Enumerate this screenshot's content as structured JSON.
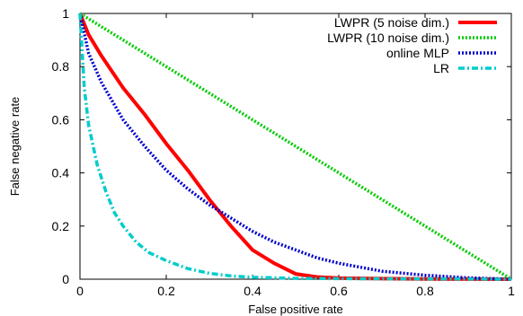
{
  "chart_data": {
    "type": "line",
    "title": "",
    "xlabel": "False positive rate",
    "ylabel": "False negative rate",
    "xlim": [
      0,
      1
    ],
    "ylim": [
      0,
      1
    ],
    "xticks": [
      0,
      0.2,
      0.4,
      0.6,
      0.8,
      1
    ],
    "yticks": [
      0,
      0.2,
      0.4,
      0.6,
      0.8,
      1
    ],
    "xtick_labels": [
      "0",
      "0.2",
      "0.4",
      "0.6",
      "0.8",
      "1"
    ],
    "ytick_labels": [
      "0",
      "0.2",
      "0.4",
      "0.6",
      "0.8",
      "1"
    ],
    "grid": false,
    "legend_position": "top-right",
    "series": [
      {
        "name": "LWPR (5 noise dim.)",
        "color": "#ff0000",
        "style": "solid",
        "x": [
          0,
          0.02,
          0.05,
          0.1,
          0.15,
          0.2,
          0.25,
          0.3,
          0.35,
          0.4,
          0.45,
          0.5,
          0.55,
          0.6,
          0.7,
          0.8,
          0.9,
          1.0
        ],
        "y": [
          1,
          0.92,
          0.84,
          0.72,
          0.62,
          0.51,
          0.41,
          0.3,
          0.2,
          0.11,
          0.06,
          0.02,
          0.008,
          0.004,
          0.002,
          0.001,
          0.0005,
          0
        ]
      },
      {
        "name": "LWPR (10 noise dim.)",
        "color": "#00cc00",
        "style": "dotted",
        "x": [
          0,
          1
        ],
        "y": [
          1,
          0
        ]
      },
      {
        "name": "online MLP",
        "color": "#0000cc",
        "style": "dotted",
        "x": [
          0,
          0.02,
          0.05,
          0.1,
          0.15,
          0.2,
          0.25,
          0.3,
          0.35,
          0.4,
          0.45,
          0.5,
          0.55,
          0.6,
          0.7,
          0.8,
          0.9,
          1.0
        ],
        "y": [
          1,
          0.85,
          0.74,
          0.6,
          0.5,
          0.41,
          0.34,
          0.28,
          0.23,
          0.18,
          0.14,
          0.11,
          0.08,
          0.06,
          0.03,
          0.015,
          0.005,
          0
        ]
      },
      {
        "name": "LR",
        "color": "#00cccc",
        "style": "dash-dot",
        "x": [
          0,
          0.01,
          0.02,
          0.04,
          0.06,
          0.08,
          0.1,
          0.13,
          0.16,
          0.2,
          0.25,
          0.3,
          0.35,
          0.4,
          0.5,
          0.6,
          0.8,
          1.0
        ],
        "y": [
          1,
          0.72,
          0.58,
          0.43,
          0.33,
          0.25,
          0.2,
          0.14,
          0.1,
          0.07,
          0.04,
          0.022,
          0.012,
          0.007,
          0.003,
          0.002,
          0.001,
          0
        ]
      }
    ]
  }
}
